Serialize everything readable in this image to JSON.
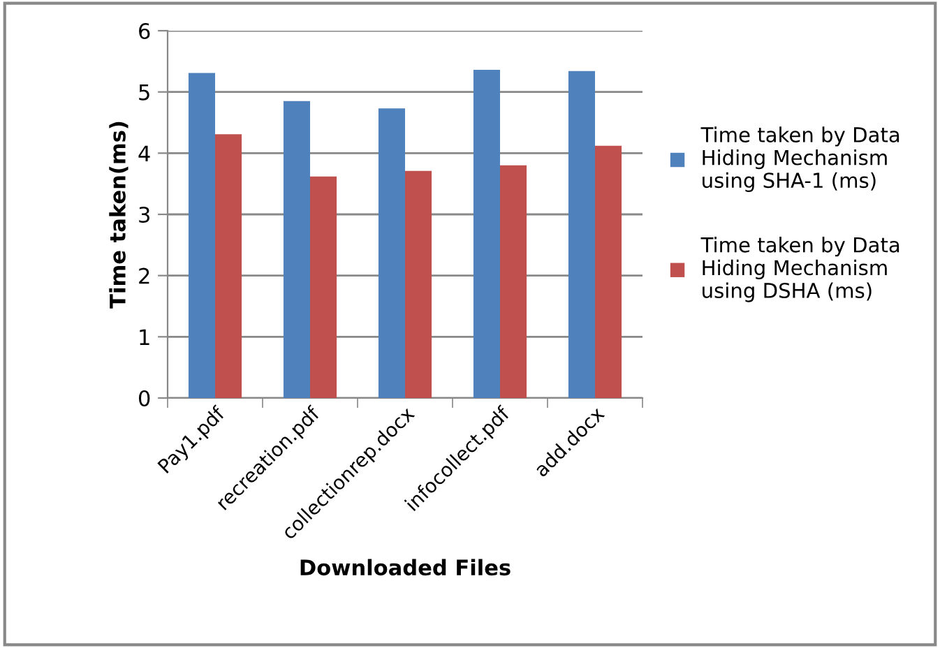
{
  "chart_data": {
    "type": "bar",
    "xlabel": "Downloaded Files",
    "ylabel": "Time taken(ms)",
    "categories": [
      "Pay1.pdf",
      "recreation.pdf",
      "collectionrep.docx",
      "infocollect.pdf",
      "add.docx"
    ],
    "series": [
      {
        "name": "Time taken by Data Hiding Mechanism using SHA-1 (ms)",
        "color": "#4f81bd",
        "values": [
          5.31,
          4.85,
          4.73,
          5.36,
          5.34
        ]
      },
      {
        "name": "Time taken by Data Hiding Mechanism using DSHA (ms)",
        "color": "#c0504d",
        "values": [
          4.31,
          3.62,
          3.71,
          3.8,
          4.12
        ]
      }
    ],
    "ylim": [
      0,
      6
    ],
    "yticks": [
      0,
      1,
      2,
      3,
      4,
      5,
      6
    ],
    "grid": "y",
    "legend": "right"
  }
}
